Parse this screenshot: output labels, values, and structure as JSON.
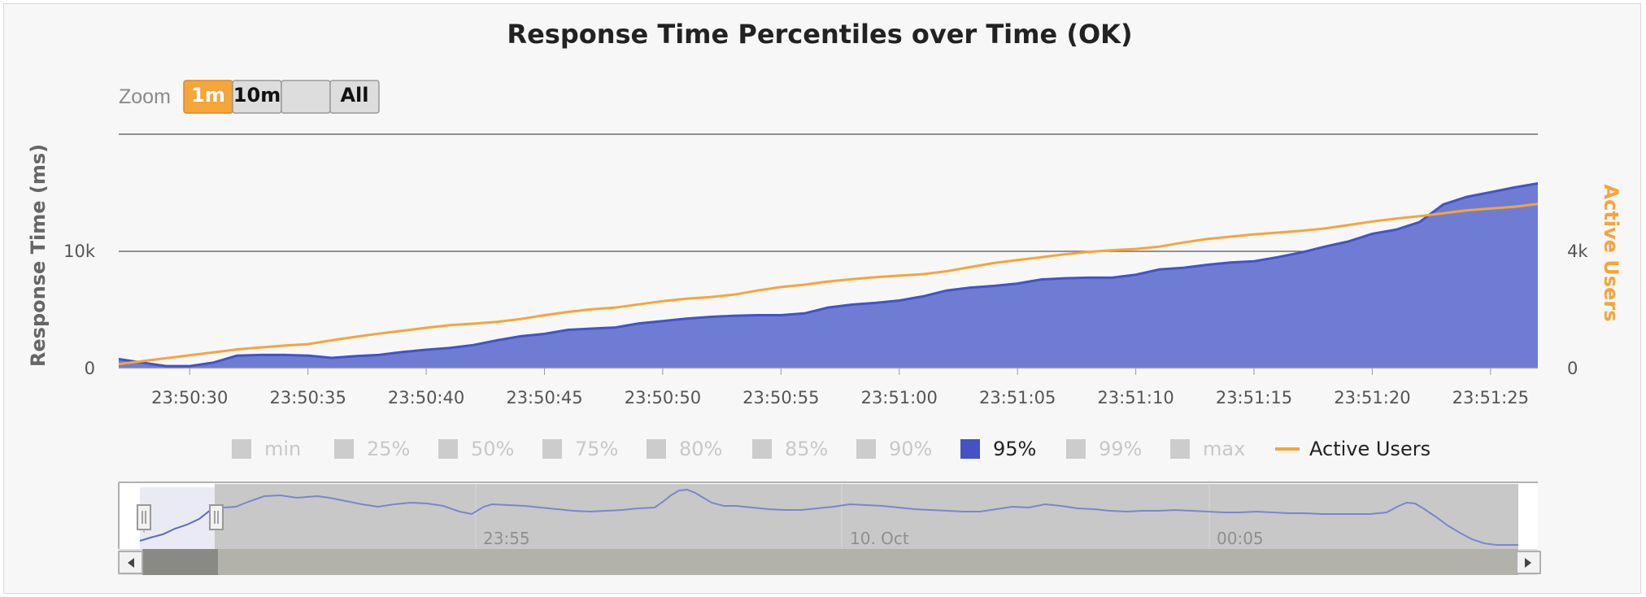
{
  "chart_data": {
    "type": "area",
    "title": "Response Time Percentiles over Time (OK)",
    "ylabel": "Response Time (ms)",
    "y2label": "Active Users",
    "ylim": [
      0,
      20000
    ],
    "y2lim": [
      0,
      8000
    ],
    "yticks": [
      "0",
      "10k"
    ],
    "y2ticks": [
      "0",
      "4k"
    ],
    "xticks": [
      "23:50:30",
      "23:50:35",
      "23:50:40",
      "23:50:45",
      "23:50:50",
      "23:50:55",
      "23:51:00",
      "23:51:05",
      "23:51:10",
      "23:51:15",
      "23:51:20",
      "23:51:25"
    ],
    "x": [
      "23:50:27",
      "23:50:28",
      "23:50:29",
      "23:50:30",
      "23:50:31",
      "23:50:32",
      "23:50:33",
      "23:50:34",
      "23:50:35",
      "23:50:36",
      "23:50:37",
      "23:50:38",
      "23:50:39",
      "23:50:40",
      "23:50:41",
      "23:50:42",
      "23:50:43",
      "23:50:44",
      "23:50:45",
      "23:50:46",
      "23:50:47",
      "23:50:48",
      "23:50:49",
      "23:50:50",
      "23:50:51",
      "23:50:52",
      "23:50:53",
      "23:50:54",
      "23:50:55",
      "23:50:56",
      "23:50:57",
      "23:50:58",
      "23:50:59",
      "23:51:00",
      "23:51:01",
      "23:51:02",
      "23:51:03",
      "23:51:04",
      "23:51:05",
      "23:51:06",
      "23:51:07",
      "23:51:08",
      "23:51:09",
      "23:51:10",
      "23:51:11",
      "23:51:12",
      "23:51:13",
      "23:51:14",
      "23:51:15",
      "23:51:16",
      "23:51:17",
      "23:51:18",
      "23:51:19",
      "23:51:20",
      "23:51:21",
      "23:51:22",
      "23:51:23",
      "23:51:24",
      "23:51:25",
      "23:51:26",
      "23:51:27"
    ],
    "series": [
      {
        "name": "95%",
        "color": "#4453c4",
        "fill": "#6e7dd3",
        "axis": "left",
        "values": [
          800,
          500,
          200,
          200,
          500,
          1100,
          1150,
          1150,
          1100,
          900,
          1050,
          1150,
          1400,
          1600,
          1750,
          2000,
          2400,
          2750,
          2950,
          3300,
          3400,
          3500,
          3850,
          4050,
          4250,
          4400,
          4500,
          4550,
          4550,
          4700,
          5200,
          5450,
          5600,
          5800,
          6150,
          6650,
          6900,
          7050,
          7250,
          7600,
          7700,
          7750,
          7750,
          8000,
          8450,
          8600,
          8850,
          9050,
          9150,
          9500,
          9900,
          10400,
          10850,
          11500,
          11850,
          12500,
          14000,
          14650,
          15050,
          15450,
          15800
        ]
      },
      {
        "name": "Active Users",
        "color": "#f5a53a",
        "axis": "right",
        "values": [
          150,
          250,
          350,
          450,
          550,
          650,
          720,
          780,
          830,
          960,
          1080,
          1190,
          1290,
          1390,
          1480,
          1530,
          1590,
          1690,
          1820,
          1930,
          2020,
          2080,
          2190,
          2300,
          2380,
          2440,
          2520,
          2660,
          2780,
          2860,
          2970,
          3050,
          3120,
          3170,
          3220,
          3320,
          3460,
          3600,
          3700,
          3800,
          3900,
          3980,
          4040,
          4080,
          4160,
          4300,
          4420,
          4500,
          4580,
          4640,
          4700,
          4780,
          4900,
          5020,
          5120,
          5200,
          5300,
          5400,
          5460,
          5520,
          5620
        ]
      }
    ],
    "legend": [
      {
        "label": "min",
        "active": false,
        "kind": "box"
      },
      {
        "label": "25%",
        "active": false,
        "kind": "box"
      },
      {
        "label": "50%",
        "active": false,
        "kind": "box"
      },
      {
        "label": "75%",
        "active": false,
        "kind": "box"
      },
      {
        "label": "80%",
        "active": false,
        "kind": "box"
      },
      {
        "label": "85%",
        "active": false,
        "kind": "box"
      },
      {
        "label": "90%",
        "active": false,
        "kind": "box"
      },
      {
        "label": "95%",
        "active": true,
        "kind": "box",
        "color": "#4453c4"
      },
      {
        "label": "99%",
        "active": false,
        "kind": "box"
      },
      {
        "label": "max",
        "active": false,
        "kind": "box"
      },
      {
        "label": "Active Users",
        "active": true,
        "kind": "line",
        "color": "#f5a53a"
      }
    ],
    "legend_position": "bottom-center",
    "grid": true
  },
  "zoom": {
    "label": "Zoom",
    "buttons": [
      {
        "label": "1m",
        "selected": true
      },
      {
        "label": "10m",
        "selected": false
      },
      {
        "label": "",
        "selected": false
      },
      {
        "label": "All",
        "selected": false
      }
    ]
  },
  "navigator": {
    "labels": [
      "23:55",
      "10. Oct",
      "00:05"
    ]
  },
  "colors": {
    "accent": "#f5a53a",
    "series": "#4453c4",
    "series_fill": "#6e7dd3",
    "grid": "#6f6f6f"
  }
}
